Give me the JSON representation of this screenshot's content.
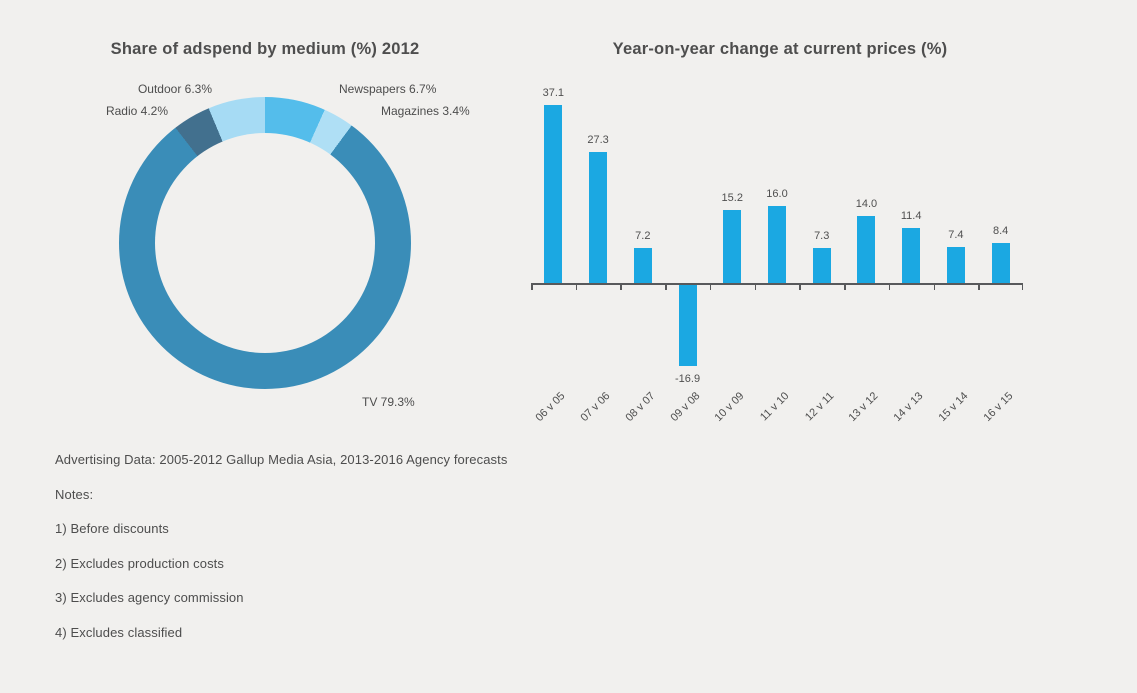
{
  "page": {
    "background_color": "#f1f0ee",
    "text_color": "#4d4d4d"
  },
  "chart_data": [
    {
      "type": "pie",
      "variant": "donut",
      "title": "Share of adspend by medium (%) 2012",
      "start_angle_deg": 0,
      "direction": "clockwise",
      "segments": [
        {
          "label": "Newspapers",
          "value": 6.7,
          "callout": "Newspapers 6.7%",
          "color": "#54bdeb"
        },
        {
          "label": "Magazines",
          "value": 3.4,
          "callout": "Magazines 3.4%",
          "color": "#afdff5"
        },
        {
          "label": "TV",
          "value": 79.3,
          "callout": "TV 79.3%",
          "color": "#3a8db8"
        },
        {
          "label": "Radio",
          "value": 4.2,
          "callout": "Radio 4.2%",
          "color": "#42708e"
        },
        {
          "label": "Outdoor",
          "value": 6.3,
          "callout": "Outdoor 6.3%",
          "color": "#a6dbf4"
        }
      ]
    },
    {
      "type": "bar",
      "title": "Year-on-year change at current prices (%)",
      "categories": [
        "06 v 05",
        "07 v 06",
        "08 v 07",
        "09 v 08",
        "10 v 09",
        "11 v 10",
        "12 v 11",
        "13 v 12",
        "14 v 13",
        "15 v 14",
        "16 v 15"
      ],
      "values": [
        37.1,
        27.3,
        7.2,
        -16.9,
        15.2,
        16.0,
        7.3,
        14.0,
        11.4,
        7.4,
        8.4
      ],
      "value_labels": [
        "37.1",
        "27.3",
        "7.2",
        "-16.9",
        "15.2",
        "16.0",
        "7.3",
        "14.0",
        "11.4",
        "7.4",
        "8.4"
      ],
      "bar_color": "#1ba8e2",
      "axis_color": "#58595b",
      "ylim": [
        -20,
        40
      ],
      "grid": false,
      "data_labels": true,
      "x_label_rotation_deg": -45
    }
  ],
  "notes": {
    "source": "Advertising Data: 2005-2012 Gallup Media Asia, 2013-2016 Agency forecasts",
    "heading": "Notes:",
    "items": [
      "1) Before discounts",
      "2) Excludes production costs",
      "3) Excludes agency commission",
      "4) Excludes classified"
    ]
  }
}
